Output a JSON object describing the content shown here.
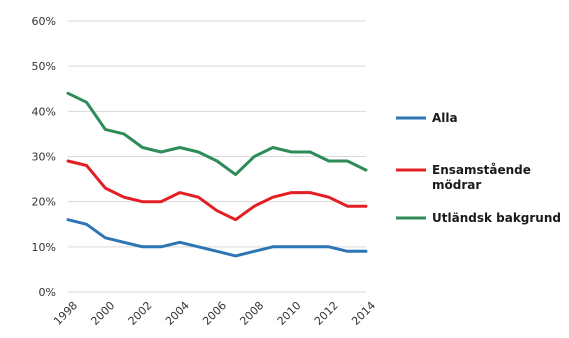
{
  "chart_data": {
    "type": "line",
    "x": [
      1998,
      1999,
      2000,
      2001,
      2002,
      2003,
      2004,
      2005,
      2006,
      2007,
      2008,
      2009,
      2010,
      2011,
      2012,
      2013,
      2014
    ],
    "x_tick_labels": [
      "1998",
      "2000",
      "2002",
      "2004",
      "2006",
      "2008",
      "2010",
      "2012",
      "2014"
    ],
    "y_tick_labels": [
      "0%",
      "10%",
      "20%",
      "30%",
      "40%",
      "50%",
      "60%"
    ],
    "ylim": [
      0,
      60
    ],
    "grid": "horizontal",
    "legend_position": "right",
    "series": [
      {
        "name": "Alla",
        "color": "#2E75B6",
        "values": [
          16,
          15,
          12,
          11,
          10,
          10,
          11,
          10,
          9,
          8,
          9,
          10,
          10,
          10,
          10,
          9,
          9
        ]
      },
      {
        "name": "Ensamstående mödrar",
        "legend_lines": [
          "Ensamstående",
          "mödrar"
        ],
        "color": "#E31E24",
        "values": [
          29,
          28,
          23,
          21,
          20,
          20,
          22,
          21,
          18,
          16,
          19,
          21,
          22,
          22,
          21,
          19,
          19
        ]
      },
      {
        "name": "Utländsk bakgrund",
        "color": "#2E8B5A",
        "values": [
          44,
          42,
          36,
          35,
          32,
          31,
          32,
          31,
          29,
          26,
          30,
          32,
          31,
          31,
          29,
          29,
          27
        ]
      }
    ]
  }
}
